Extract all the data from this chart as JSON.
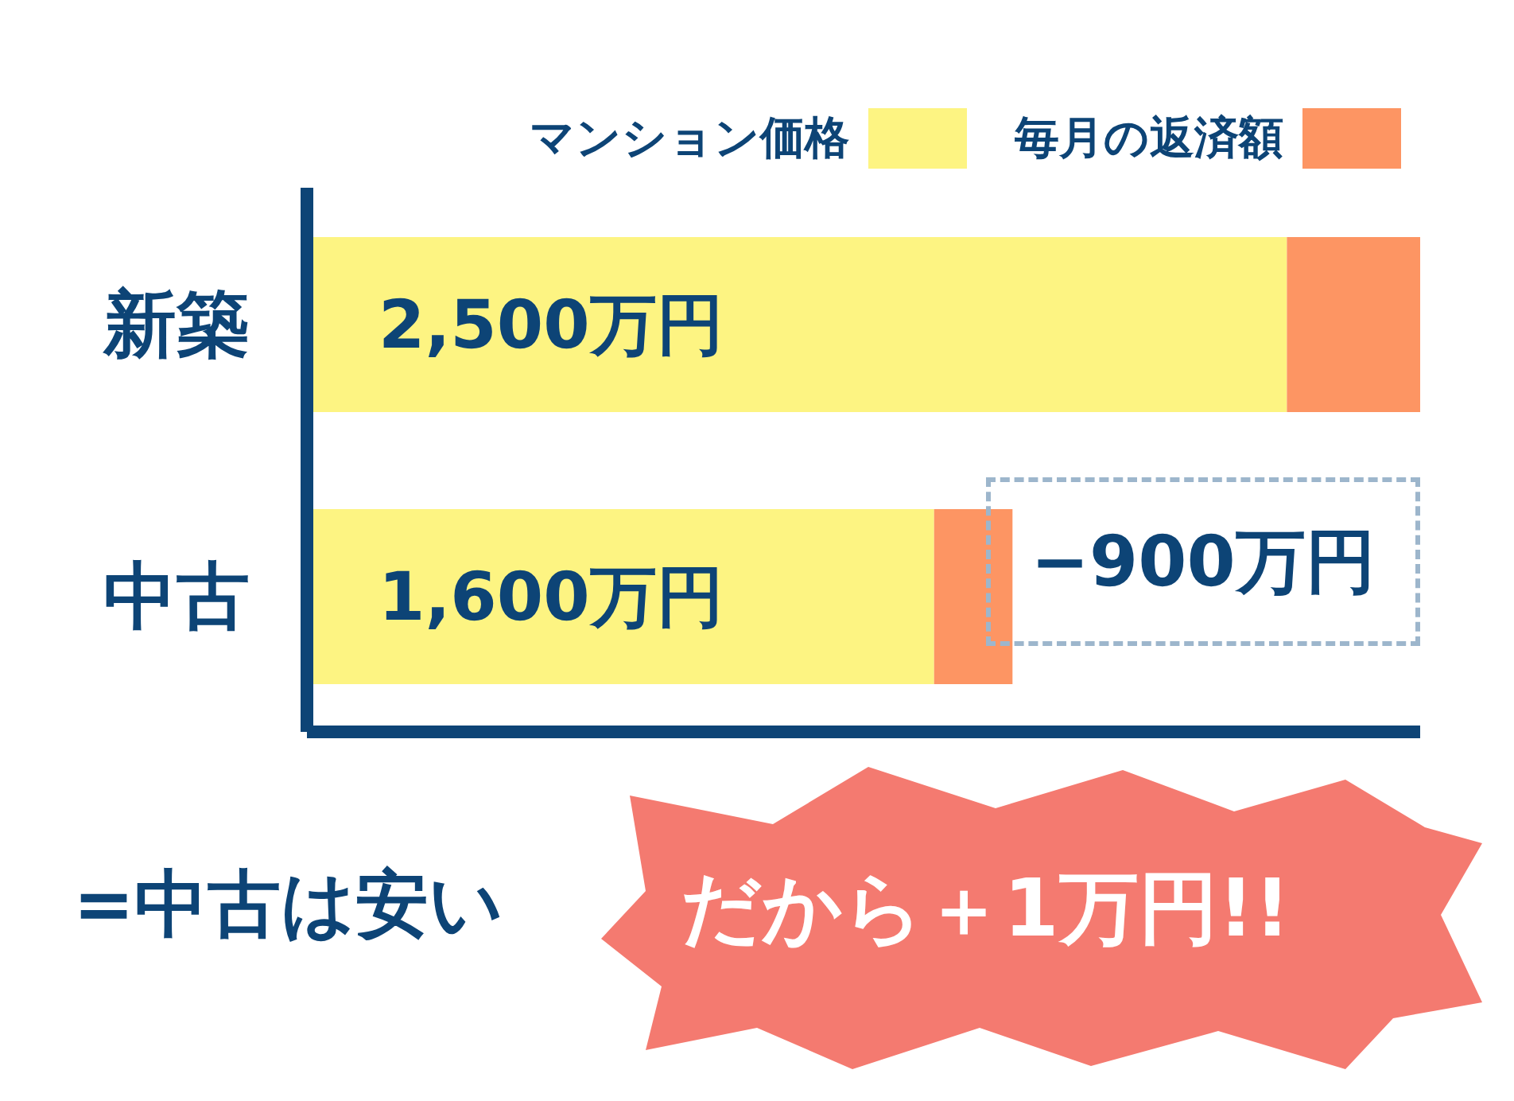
{
  "chart_data": {
    "type": "bar",
    "orientation": "horizontal",
    "stacked": true,
    "legend": "top right",
    "xlim": [
      0,
      2840
    ],
    "tick_labels": "y",
    "categories": [
      "新築",
      "中古"
    ],
    "series": [
      {
        "name": "マンション価格",
        "color": "#fdf482",
        "values": [
          2500,
          1600
        ],
        "value_labels": [
          "2,500万円",
          "1,600万円"
        ]
      },
      {
        "name": "毎月の返済額",
        "color": "#fd9563",
        "values": [
          340,
          200
        ]
      }
    ],
    "annotations": [
      "−900万円",
      "=中古は安い",
      "だから＋1万円!!"
    ]
  }
}
